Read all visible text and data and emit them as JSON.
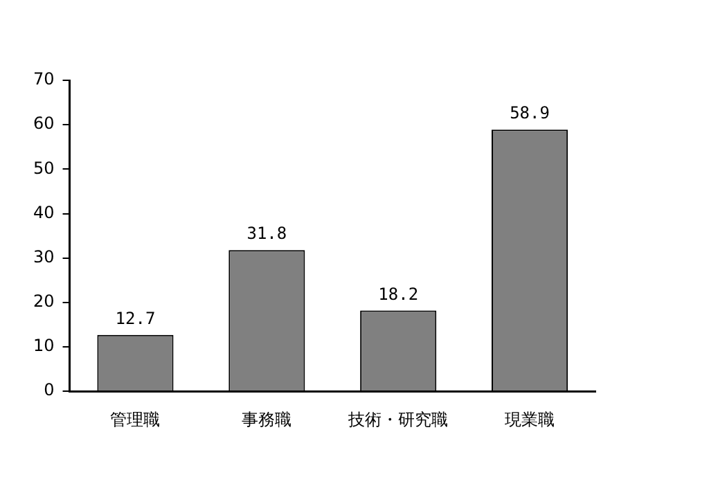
{
  "chart_data": {
    "type": "bar",
    "categories": [
      "管理職",
      "事務職",
      "技術・研究職",
      "現業職"
    ],
    "values": [
      12.7,
      31.8,
      18.2,
      58.9
    ],
    "color": "#808080",
    "ylim": [
      0,
      70
    ],
    "yticks": [
      0,
      10,
      20,
      30,
      40,
      50,
      60,
      70
    ],
    "grid": false,
    "legend": false,
    "data_labels": true
  }
}
